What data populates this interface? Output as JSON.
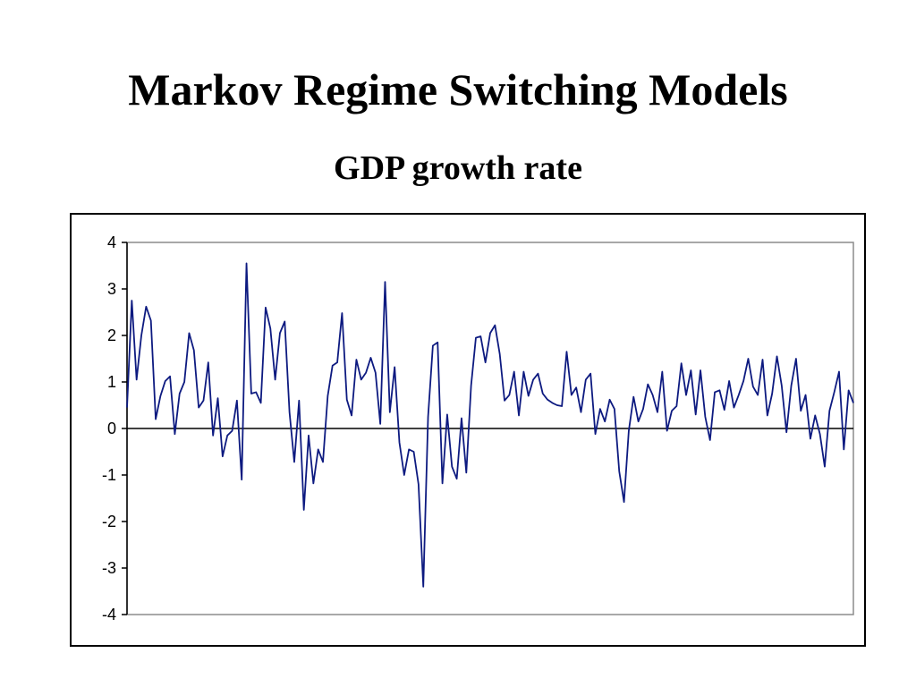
{
  "slide": {
    "title": "Markov Regime Switching Models"
  },
  "chart_data": {
    "type": "line",
    "title": "GDP growth rate",
    "xlabel": "",
    "ylabel": "",
    "ylim": [
      -4,
      4
    ],
    "y_ticks": [
      "4",
      "3",
      "2",
      "1",
      "0",
      "-1",
      "-2",
      "-3",
      "-4"
    ],
    "y_tick_values": [
      4,
      3,
      2,
      1,
      0,
      -1,
      -2,
      -3,
      -4
    ],
    "grid": false,
    "legend": "none",
    "colors": {
      "line": "#0d1a80",
      "zero_line": "#000000",
      "plot_border": "#8c8c8c"
    },
    "series": [
      {
        "values": [
          0.45,
          2.75,
          1.05,
          2.0,
          2.62,
          2.32,
          0.2,
          0.7,
          1.02,
          1.12,
          -0.12,
          0.75,
          1.0,
          2.05,
          1.68,
          0.45,
          0.6,
          1.42,
          -0.15,
          0.65,
          -0.6,
          -0.15,
          -0.05,
          0.6,
          -1.1,
          3.55,
          0.75,
          0.78,
          0.55,
          2.6,
          2.15,
          1.05,
          2.05,
          2.3,
          0.35,
          -0.72,
          0.6,
          -1.75,
          -0.15,
          -1.18,
          -0.45,
          -0.72,
          0.7,
          1.35,
          1.42,
          2.48,
          0.62,
          0.28,
          1.48,
          1.05,
          1.2,
          1.52,
          1.2,
          0.1,
          3.15,
          0.35,
          1.32,
          -0.3,
          -1.0,
          -0.45,
          -0.5,
          -1.2,
          -3.4,
          0.25,
          1.78,
          1.85,
          -1.18,
          0.3,
          -0.82,
          -1.08,
          0.22,
          -0.95,
          0.92,
          1.95,
          1.98,
          1.42,
          2.05,
          2.22,
          1.6,
          0.6,
          0.72,
          1.22,
          0.28,
          1.22,
          0.7,
          1.05,
          1.18,
          0.75,
          0.62,
          0.55,
          0.5,
          0.48,
          1.65,
          0.72,
          0.88,
          0.35,
          1.05,
          1.18,
          -0.12,
          0.42,
          0.15,
          0.62,
          0.42,
          -0.92,
          -1.58,
          -0.05,
          0.68,
          0.15,
          0.42,
          0.95,
          0.72,
          0.35,
          1.22,
          -0.05,
          0.38,
          0.48,
          1.4,
          0.72,
          1.25,
          0.3,
          1.25,
          0.25,
          -0.25,
          0.78,
          0.82,
          0.4,
          1.02,
          0.45,
          0.72,
          1.02,
          1.5,
          0.9,
          0.72,
          1.48,
          0.28,
          0.75,
          1.55,
          0.92,
          -0.08,
          0.92,
          1.5,
          0.38,
          0.72,
          -0.22,
          0.28,
          -0.12,
          -0.82,
          0.38,
          0.78,
          1.22,
          -0.45,
          0.82,
          0.55
        ]
      }
    ]
  }
}
